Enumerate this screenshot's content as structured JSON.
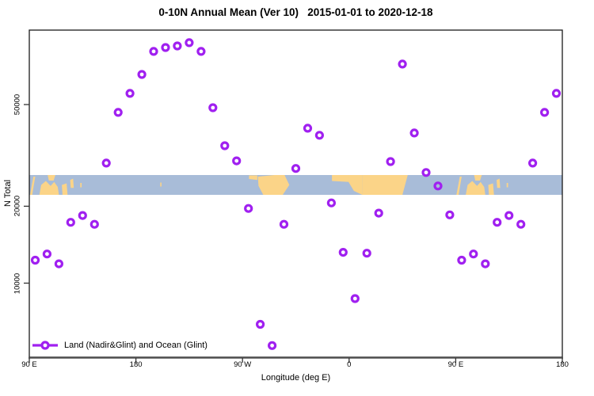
{
  "chart_data": {
    "type": "scatter",
    "title": "0-10N Annual Mean (Ver 10)   2015-01-01 to 2020-12-18",
    "xlabel": "Longitude (deg E)",
    "ylabel": "N Total",
    "y_scale": "log10",
    "x_range": [
      90,
      540
    ],
    "x_axis": {
      "ticks": [
        {
          "lon": 90,
          "label": "90 E"
        },
        {
          "lon": 180,
          "label": "180"
        },
        {
          "lon": 270,
          "label": "90 W"
        },
        {
          "lon": 360,
          "label": "0"
        },
        {
          "lon": 450,
          "label": "90 E"
        },
        {
          "lon": 540,
          "label": "180"
        }
      ]
    },
    "y_axis": {
      "ticks": [
        {
          "value": 10000,
          "label": "10000"
        },
        {
          "value": 20000,
          "label": "20000"
        },
        {
          "value": 50000,
          "label": "50000"
        }
      ]
    },
    "legend": {
      "label": "Land (Nadir&Glint) and Ocean (Glint)"
    },
    "series": [
      {
        "name": "Land (Nadir&Glint) and Ocean (Glint)",
        "marker": "open-circle",
        "color": "#a020f0",
        "points": [
          [
            95,
            12300
          ],
          [
            105,
            13000
          ],
          [
            115,
            11900
          ],
          [
            125,
            17300
          ],
          [
            135,
            18400
          ],
          [
            145,
            17000
          ],
          [
            155,
            29500
          ],
          [
            165,
            46600
          ],
          [
            175,
            55300
          ],
          [
            185,
            65600
          ],
          [
            195,
            80700
          ],
          [
            205,
            83600
          ],
          [
            215,
            84800
          ],
          [
            225,
            87300
          ],
          [
            235,
            80700
          ],
          [
            245,
            48600
          ],
          [
            255,
            34500
          ],
          [
            265,
            30100
          ],
          [
            275,
            19600
          ],
          [
            285,
            6900
          ],
          [
            295,
            5700
          ],
          [
            305,
            17000
          ],
          [
            315,
            28100
          ],
          [
            325,
            40400
          ],
          [
            335,
            37900
          ],
          [
            345,
            20600
          ],
          [
            355,
            13200
          ],
          [
            365,
            8700
          ],
          [
            375,
            13100
          ],
          [
            385,
            18800
          ],
          [
            395,
            29900
          ],
          [
            405,
            72000
          ],
          [
            415,
            38700
          ],
          [
            425,
            27100
          ],
          [
            435,
            24000
          ],
          [
            445,
            18500
          ],
          [
            455,
            12300
          ],
          [
            465,
            13000
          ],
          [
            475,
            11900
          ],
          [
            485,
            17300
          ],
          [
            495,
            18400
          ],
          [
            505,
            17000
          ],
          [
            515,
            29500
          ],
          [
            525,
            46600
          ],
          [
            535,
            55300
          ]
        ]
      }
    ],
    "map_band": {
      "ocean_color": "#a8bcd8",
      "land_color": "#fbd488",
      "land_patches": [
        [
          [
            90.6,
            1
          ],
          [
            93.5,
            0.08
          ],
          [
            95,
            0.08
          ],
          [
            92.5,
            1
          ]
        ],
        [
          [
            98.5,
            1
          ],
          [
            100,
            0.5
          ],
          [
            104,
            0.3
          ],
          [
            108,
            0.55
          ],
          [
            111,
            0.35
          ],
          [
            114,
            0.6
          ],
          [
            115,
            1
          ]
        ],
        [
          [
            105.5,
            0
          ],
          [
            112,
            0
          ],
          [
            110.5,
            0.28
          ],
          [
            106.5,
            0.28
          ]
        ],
        [
          [
            117.5,
            0.5
          ],
          [
            121.5,
            0.42
          ],
          [
            122.3,
            1
          ],
          [
            118,
            1
          ]
        ],
        [
          [
            124.5,
            0.25
          ],
          [
            127,
            0.18
          ],
          [
            127.6,
            0.65
          ],
          [
            125,
            0.65
          ]
        ],
        [
          [
            133,
            0.4
          ],
          [
            134.2,
            0.4
          ],
          [
            134.2,
            0.62
          ],
          [
            133,
            0.62
          ]
        ],
        [
          [
            200.5,
            0.38
          ],
          [
            201.6,
            0.38
          ],
          [
            201.6,
            0.58
          ],
          [
            200.5,
            0.58
          ]
        ],
        [
          [
            275.5,
            0.02
          ],
          [
            282.5,
            0.02
          ],
          [
            282.5,
            0.25
          ],
          [
            275.5,
            0.2
          ]
        ],
        [
          [
            283,
            0.08
          ],
          [
            297,
            0
          ],
          [
            305.5,
            0
          ],
          [
            309.5,
            0.5
          ],
          [
            304,
            1
          ],
          [
            287.5,
            1
          ],
          [
            283.5,
            0.55
          ]
        ],
        [
          [
            345.5,
            0
          ],
          [
            360,
            0
          ],
          [
            360,
            0.35
          ],
          [
            345.5,
            0.3
          ]
        ],
        [
          [
            359.5,
            0
          ],
          [
            371,
            0
          ],
          [
            371,
            1
          ],
          [
            364,
            0.8
          ],
          [
            361,
            0.5
          ],
          [
            359.5,
            0.35
          ]
        ],
        [
          [
            371,
            0
          ],
          [
            405,
            0
          ],
          [
            405,
            1
          ],
          [
            371,
            1
          ]
        ],
        [
          [
            404.5,
            0
          ],
          [
            409.5,
            0
          ],
          [
            405,
            1
          ],
          [
            404.5,
            1
          ]
        ],
        [
          [
            450.6,
            1
          ],
          [
            453.5,
            0.08
          ],
          [
            455,
            0.08
          ],
          [
            452.5,
            1
          ]
        ],
        [
          [
            458.5,
            1
          ],
          [
            460,
            0.5
          ],
          [
            464,
            0.3
          ],
          [
            468,
            0.55
          ],
          [
            471,
            0.35
          ],
          [
            474,
            0.6
          ],
          [
            475,
            1
          ]
        ],
        [
          [
            465.5,
            0
          ],
          [
            472,
            0
          ],
          [
            470.5,
            0.28
          ],
          [
            466.5,
            0.28
          ]
        ],
        [
          [
            477.5,
            0.5
          ],
          [
            481.5,
            0.42
          ],
          [
            482.3,
            1
          ],
          [
            478,
            1
          ]
        ],
        [
          [
            484.5,
            0.25
          ],
          [
            487,
            0.18
          ],
          [
            487.6,
            0.65
          ],
          [
            485,
            0.65
          ]
        ],
        [
          [
            493,
            0.4
          ],
          [
            494.2,
            0.4
          ],
          [
            494.2,
            0.62
          ],
          [
            493,
            0.62
          ]
        ]
      ]
    },
    "colors": {
      "axis": "#1a1a1a",
      "bottom_axis": "#4d4d4d",
      "tick": "#333333"
    }
  }
}
